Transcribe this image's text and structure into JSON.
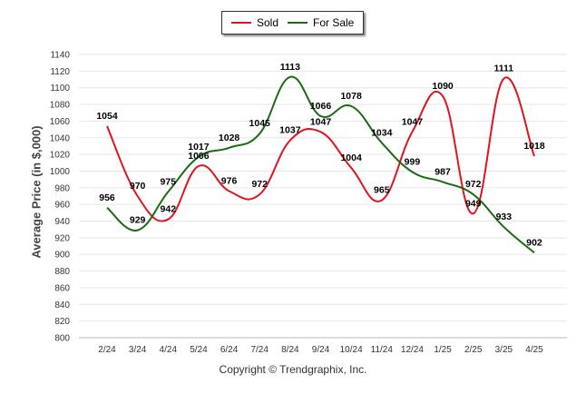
{
  "chart_data": {
    "type": "line",
    "ylabel": "Average Price (in $,000)",
    "xlabel": "",
    "ylim": [
      800,
      1140
    ],
    "yticks": [
      800,
      820,
      840,
      860,
      880,
      900,
      920,
      940,
      960,
      980,
      1000,
      1020,
      1040,
      1060,
      1080,
      1100,
      1120,
      1140
    ],
    "categories": [
      "2/24",
      "3/24",
      "4/24",
      "5/24",
      "6/24",
      "7/24",
      "8/24",
      "9/24",
      "10/24",
      "11/24",
      "12/24",
      "1/25",
      "2/25",
      "3/25",
      "4/25"
    ],
    "series": [
      {
        "name": "Sold",
        "color": "#e0141e",
        "values": [
          1054,
          970,
          942,
          1006,
          976,
          972,
          1037,
          1047,
          1004,
          965,
          1047,
          1090,
          949,
          1111,
          1018
        ]
      },
      {
        "name": "For Sale",
        "color": "#1a6b12",
        "values": [
          956,
          929,
          975,
          1017,
          1028,
          1045,
          1113,
          1066,
          1078,
          1034,
          999,
          987,
          972,
          933,
          902
        ]
      }
    ],
    "legend_position": "top-center",
    "grid": true
  },
  "footer": {
    "copyright": "Copyright © Trendgraphix, Inc."
  }
}
